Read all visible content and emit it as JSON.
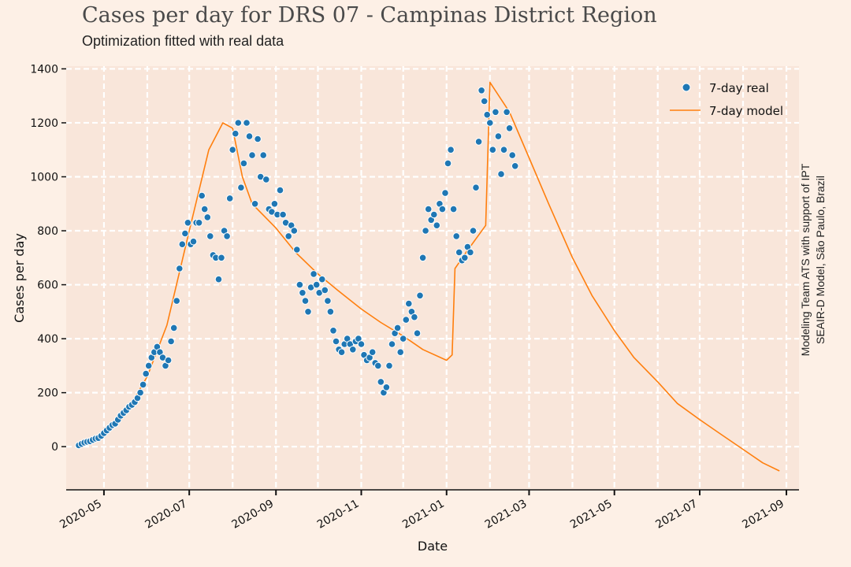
{
  "title": "Cases per day for DRS 07 - Campinas District Region",
  "subtitle": "Optimization fitted with real data",
  "credits": {
    "line1": "Modeling Team ATS with support of IPT",
    "line2": "SEAIR-D Model, São Paulo, Brazil"
  },
  "colors": {
    "page_bg": "#fdf0e6",
    "plot_bg": "#f9e6da",
    "grid": "#ffffff",
    "real": "#1f77b4",
    "model": "#ff7f0e"
  },
  "chart_data": {
    "type": "scatter",
    "xlabel": "Date",
    "ylabel": "Cases per day",
    "xlim": [
      "2020-04-04",
      "2021-09-10"
    ],
    "ylim": [
      -160,
      1410
    ],
    "grid": true,
    "legend_position": "top-right",
    "x_ticks": [
      "2020-05",
      "2020-07",
      "2020-09",
      "2020-11",
      "2021-01",
      "2021-03",
      "2021-05",
      "2021-07",
      "2021-09"
    ],
    "y_ticks": [
      "0",
      "200",
      "400",
      "600",
      "800",
      "1000",
      "1200",
      "1400"
    ],
    "series": [
      {
        "name": "7-day real",
        "style": "markers",
        "points": [
          [
            "2020-04-13",
            5
          ],
          [
            "2020-04-15",
            10
          ],
          [
            "2020-04-17",
            15
          ],
          [
            "2020-04-19",
            18
          ],
          [
            "2020-04-21",
            20
          ],
          [
            "2020-04-23",
            25
          ],
          [
            "2020-04-25",
            30
          ],
          [
            "2020-04-27",
            32
          ],
          [
            "2020-04-29",
            40
          ],
          [
            "2020-05-01",
            50
          ],
          [
            "2020-05-03",
            60
          ],
          [
            "2020-05-05",
            70
          ],
          [
            "2020-05-07",
            80
          ],
          [
            "2020-05-09",
            85
          ],
          [
            "2020-05-11",
            100
          ],
          [
            "2020-05-13",
            115
          ],
          [
            "2020-05-15",
            125
          ],
          [
            "2020-05-17",
            135
          ],
          [
            "2020-05-19",
            148
          ],
          [
            "2020-05-21",
            155
          ],
          [
            "2020-05-23",
            165
          ],
          [
            "2020-05-25",
            180
          ],
          [
            "2020-05-27",
            200
          ],
          [
            "2020-05-29",
            230
          ],
          [
            "2020-05-31",
            270
          ],
          [
            "2020-06-02",
            300
          ],
          [
            "2020-06-04",
            330
          ],
          [
            "2020-06-06",
            350
          ],
          [
            "2020-06-08",
            370
          ],
          [
            "2020-06-10",
            350
          ],
          [
            "2020-06-12",
            330
          ],
          [
            "2020-06-14",
            300
          ],
          [
            "2020-06-16",
            320
          ],
          [
            "2020-06-18",
            390
          ],
          [
            "2020-06-20",
            440
          ],
          [
            "2020-06-22",
            540
          ],
          [
            "2020-06-24",
            660
          ],
          [
            "2020-06-26",
            750
          ],
          [
            "2020-06-28",
            790
          ],
          [
            "2020-06-30",
            830
          ],
          [
            "2020-07-02",
            750
          ],
          [
            "2020-07-04",
            760
          ],
          [
            "2020-07-06",
            830
          ],
          [
            "2020-07-08",
            830
          ],
          [
            "2020-07-10",
            930
          ],
          [
            "2020-07-12",
            880
          ],
          [
            "2020-07-14",
            850
          ],
          [
            "2020-07-16",
            780
          ],
          [
            "2020-07-18",
            710
          ],
          [
            "2020-07-20",
            700
          ],
          [
            "2020-07-22",
            620
          ],
          [
            "2020-07-24",
            700
          ],
          [
            "2020-07-26",
            800
          ],
          [
            "2020-07-28",
            780
          ],
          [
            "2020-07-30",
            920
          ],
          [
            "2020-08-01",
            1100
          ],
          [
            "2020-08-03",
            1160
          ],
          [
            "2020-08-05",
            1200
          ],
          [
            "2020-08-07",
            960
          ],
          [
            "2020-08-09",
            1050
          ],
          [
            "2020-08-11",
            1200
          ],
          [
            "2020-08-13",
            1150
          ],
          [
            "2020-08-15",
            1080
          ],
          [
            "2020-08-17",
            900
          ],
          [
            "2020-08-19",
            1140
          ],
          [
            "2020-08-21",
            1000
          ],
          [
            "2020-08-23",
            1080
          ],
          [
            "2020-08-25",
            990
          ],
          [
            "2020-08-27",
            880
          ],
          [
            "2020-08-29",
            870
          ],
          [
            "2020-08-31",
            900
          ],
          [
            "2020-09-02",
            860
          ],
          [
            "2020-09-04",
            950
          ],
          [
            "2020-09-06",
            860
          ],
          [
            "2020-09-08",
            830
          ],
          [
            "2020-09-10",
            780
          ],
          [
            "2020-09-12",
            820
          ],
          [
            "2020-09-14",
            800
          ],
          [
            "2020-09-16",
            730
          ],
          [
            "2020-09-18",
            600
          ],
          [
            "2020-09-20",
            570
          ],
          [
            "2020-09-22",
            540
          ],
          [
            "2020-09-24",
            500
          ],
          [
            "2020-09-26",
            590
          ],
          [
            "2020-09-28",
            640
          ],
          [
            "2020-09-30",
            600
          ],
          [
            "2020-10-02",
            570
          ],
          [
            "2020-10-04",
            620
          ],
          [
            "2020-10-06",
            580
          ],
          [
            "2020-10-08",
            540
          ],
          [
            "2020-10-10",
            500
          ],
          [
            "2020-10-12",
            430
          ],
          [
            "2020-10-14",
            390
          ],
          [
            "2020-10-16",
            360
          ],
          [
            "2020-10-18",
            350
          ],
          [
            "2020-10-20",
            380
          ],
          [
            "2020-10-22",
            400
          ],
          [
            "2020-10-24",
            380
          ],
          [
            "2020-10-26",
            360
          ],
          [
            "2020-10-28",
            390
          ],
          [
            "2020-10-30",
            400
          ],
          [
            "2020-11-01",
            380
          ],
          [
            "2020-11-03",
            340
          ],
          [
            "2020-11-05",
            320
          ],
          [
            "2020-11-07",
            330
          ],
          [
            "2020-11-09",
            350
          ],
          [
            "2020-11-11",
            310
          ],
          [
            "2020-11-13",
            300
          ],
          [
            "2020-11-15",
            240
          ],
          [
            "2020-11-17",
            200
          ],
          [
            "2020-11-19",
            220
          ],
          [
            "2020-11-21",
            300
          ],
          [
            "2020-11-23",
            380
          ],
          [
            "2020-11-25",
            420
          ],
          [
            "2020-11-27",
            440
          ],
          [
            "2020-11-29",
            350
          ],
          [
            "2020-12-01",
            400
          ],
          [
            "2020-12-03",
            470
          ],
          [
            "2020-12-05",
            530
          ],
          [
            "2020-12-07",
            500
          ],
          [
            "2020-12-09",
            480
          ],
          [
            "2020-12-11",
            420
          ],
          [
            "2020-12-13",
            560
          ],
          [
            "2020-12-15",
            700
          ],
          [
            "2020-12-17",
            800
          ],
          [
            "2020-12-19",
            880
          ],
          [
            "2020-12-21",
            840
          ],
          [
            "2020-12-23",
            860
          ],
          [
            "2020-12-25",
            820
          ],
          [
            "2020-12-27",
            900
          ],
          [
            "2020-12-29",
            880
          ],
          [
            "2020-12-31",
            940
          ],
          [
            "2021-01-02",
            1050
          ],
          [
            "2021-01-04",
            1100
          ],
          [
            "2021-01-06",
            880
          ],
          [
            "2021-01-08",
            780
          ],
          [
            "2021-01-10",
            720
          ],
          [
            "2021-01-12",
            690
          ],
          [
            "2021-01-14",
            700
          ],
          [
            "2021-01-16",
            740
          ],
          [
            "2021-01-18",
            720
          ],
          [
            "2021-01-20",
            800
          ],
          [
            "2021-01-22",
            960
          ],
          [
            "2021-01-24",
            1130
          ],
          [
            "2021-01-26",
            1320
          ],
          [
            "2021-01-28",
            1280
          ],
          [
            "2021-01-30",
            1230
          ],
          [
            "2021-02-01",
            1200
          ],
          [
            "2021-02-03",
            1100
          ],
          [
            "2021-02-05",
            1240
          ],
          [
            "2021-02-07",
            1150
          ],
          [
            "2021-02-09",
            1010
          ],
          [
            "2021-02-11",
            1100
          ],
          [
            "2021-02-13",
            1240
          ],
          [
            "2021-02-15",
            1180
          ],
          [
            "2021-02-17",
            1080
          ],
          [
            "2021-02-19",
            1040
          ]
        ]
      },
      {
        "name": "7-day model",
        "style": "line",
        "points": [
          [
            "2020-04-13",
            3
          ],
          [
            "2020-05-01",
            40
          ],
          [
            "2020-05-15",
            110
          ],
          [
            "2020-06-01",
            260
          ],
          [
            "2020-06-15",
            450
          ],
          [
            "2020-07-01",
            800
          ],
          [
            "2020-07-15",
            1100
          ],
          [
            "2020-07-25",
            1200
          ],
          [
            "2020-08-01",
            1180
          ],
          [
            "2020-08-08",
            1000
          ],
          [
            "2020-08-15",
            900
          ],
          [
            "2020-09-01",
            810
          ],
          [
            "2020-09-15",
            720
          ],
          [
            "2020-10-01",
            640
          ],
          [
            "2020-10-15",
            580
          ],
          [
            "2020-11-01",
            510
          ],
          [
            "2020-11-15",
            460
          ],
          [
            "2020-12-01",
            410
          ],
          [
            "2020-12-15",
            360
          ],
          [
            "2021-01-01",
            320
          ],
          [
            "2021-01-05",
            340
          ],
          [
            "2021-01-07",
            660
          ],
          [
            "2021-01-15",
            720
          ],
          [
            "2021-01-29",
            820
          ],
          [
            "2021-02-01",
            1350
          ],
          [
            "2021-02-15",
            1240
          ],
          [
            "2021-03-01",
            1070
          ],
          [
            "2021-03-15",
            900
          ],
          [
            "2021-04-01",
            700
          ],
          [
            "2021-04-15",
            560
          ],
          [
            "2021-05-01",
            430
          ],
          [
            "2021-05-15",
            330
          ],
          [
            "2021-06-01",
            240
          ],
          [
            "2021-06-15",
            160
          ],
          [
            "2021-07-01",
            100
          ],
          [
            "2021-07-15",
            50
          ],
          [
            "2021-08-01",
            -10
          ],
          [
            "2021-08-15",
            -60
          ],
          [
            "2021-08-27",
            -90
          ]
        ]
      }
    ]
  }
}
